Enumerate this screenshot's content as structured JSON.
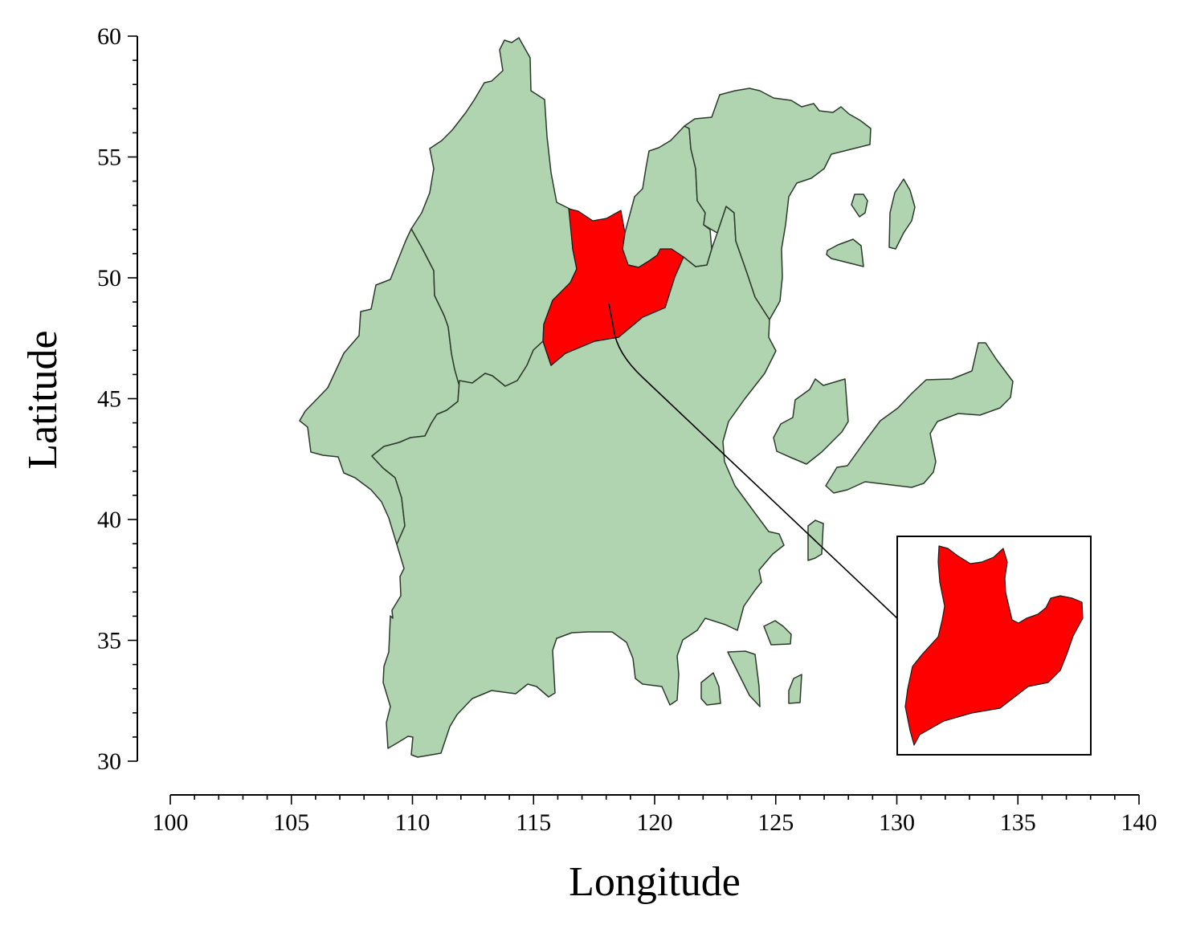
{
  "chart_data": {
    "type": "map",
    "xlabel": "Longitude",
    "ylabel": "Latitude",
    "xlim": [
      100,
      140
    ],
    "ylim": [
      30,
      60
    ],
    "x_ticks": [
      100,
      105,
      110,
      115,
      120,
      125,
      130,
      135,
      140
    ],
    "y_ticks": [
      30,
      35,
      40,
      45,
      50,
      55,
      60
    ],
    "x_minor_step": 1,
    "y_minor_step": 1,
    "grid": false,
    "colors": {
      "region_fill": "#b0d3b0",
      "region_edge": "#2b3a2b",
      "highlight_fill": "#ff0000"
    },
    "highlight_anchor": [
      118.1,
      49.0
    ],
    "inset_extent": {
      "lon": [
        130,
        138
      ],
      "lat": [
        30.3,
        39.3
      ]
    }
  }
}
